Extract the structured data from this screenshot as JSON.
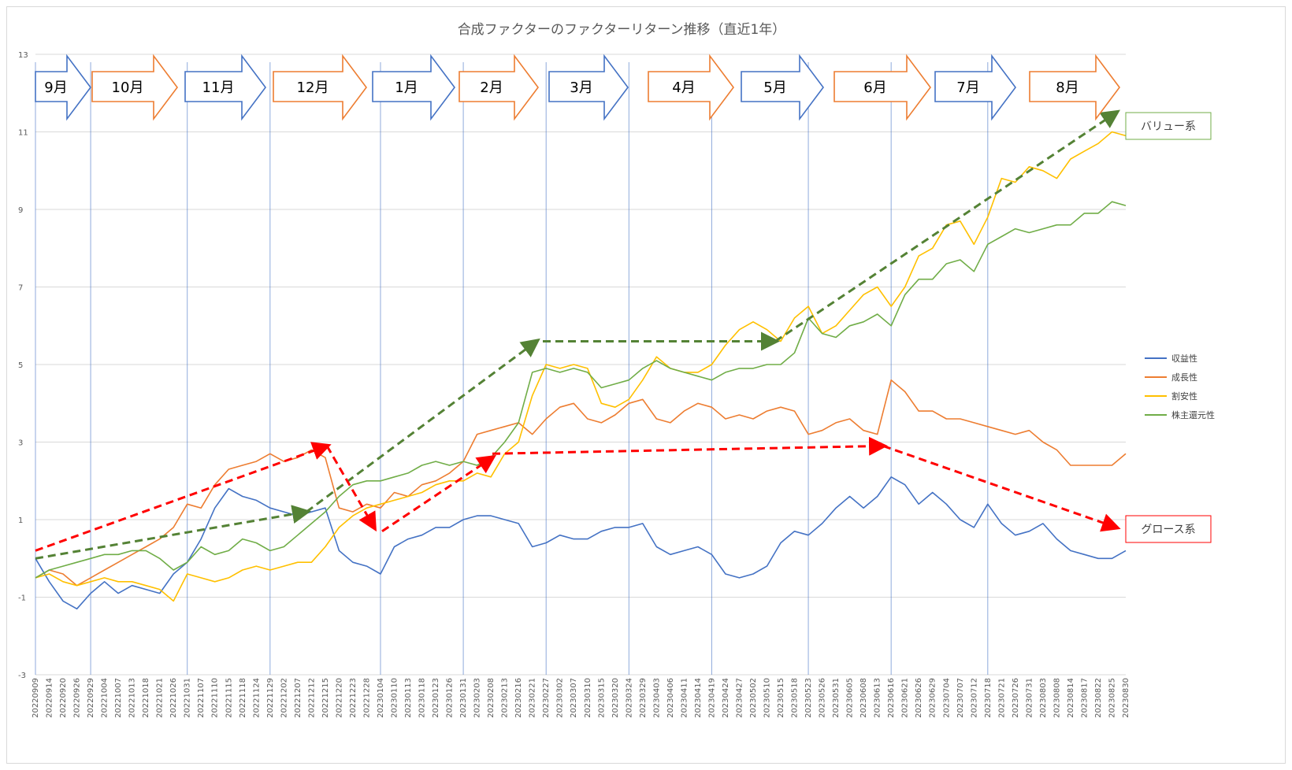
{
  "chart_data": {
    "type": "line",
    "title": "合成ファクターのファクターリターン推移（直近1年）",
    "ylim": [
      -3,
      13
    ],
    "yticks": [
      -3,
      -1,
      1,
      3,
      5,
      7,
      9,
      11,
      13
    ],
    "grid": true,
    "legend_position": "right",
    "x_tick_labels": [
      "20220909",
      "20220914",
      "20220920",
      "20220926",
      "20220929",
      "20221004",
      "20221007",
      "20221013",
      "20221018",
      "20221021",
      "20221026",
      "20221031",
      "20221107",
      "20221110",
      "20221115",
      "20221118",
      "20221124",
      "20221129",
      "20221202",
      "20221207",
      "20221212",
      "20221215",
      "20221220",
      "20221223",
      "20221228",
      "20230104",
      "20230110",
      "20230113",
      "20230118",
      "20230123",
      "20230126",
      "20230131",
      "20230203",
      "20230208",
      "20230213",
      "20230216",
      "20230221",
      "20230227",
      "20230302",
      "20230307",
      "20230310",
      "20230315",
      "20230320",
      "20230324",
      "20230329",
      "20230403",
      "20230406",
      "20230411",
      "20230414",
      "20230419",
      "20230424",
      "20230427",
      "20230502",
      "20230510",
      "20230515",
      "20230518",
      "20230523",
      "20230526",
      "20230531",
      "20230605",
      "20230608",
      "20230613",
      "20230616",
      "20230621",
      "20230626",
      "20230629",
      "20230704",
      "20230707",
      "20230712",
      "20230718",
      "20230721",
      "20230726",
      "20230731",
      "20230803",
      "20230808",
      "20230814",
      "20230817",
      "20230822",
      "20230825",
      "20230830"
    ],
    "series": [
      {
        "name": "収益性",
        "color": "#4472c4",
        "values": [
          0.0,
          -0.6,
          -1.1,
          -1.3,
          -0.9,
          -0.6,
          -0.9,
          -0.7,
          -0.8,
          -0.9,
          -0.4,
          -0.1,
          0.5,
          1.3,
          1.8,
          1.6,
          1.5,
          1.3,
          1.2,
          1.1,
          1.2,
          1.3,
          0.2,
          -0.1,
          -0.2,
          -0.4,
          0.3,
          0.5,
          0.6,
          0.8,
          0.8,
          1.0,
          1.1,
          1.1,
          1.0,
          0.9,
          0.3,
          0.4,
          0.6,
          0.5,
          0.5,
          0.7,
          0.8,
          0.8,
          0.9,
          0.3,
          0.1,
          0.2,
          0.3,
          0.1,
          -0.4,
          -0.5,
          -0.4,
          -0.2,
          0.4,
          0.7,
          0.6,
          0.9,
          1.3,
          1.6,
          1.3,
          1.6,
          2.1,
          1.9,
          1.4,
          1.7,
          1.4,
          1.0,
          0.8,
          1.4,
          0.9,
          0.6,
          0.7,
          0.9,
          0.5,
          0.2,
          0.1,
          0.0,
          0.0,
          0.2
        ]
      },
      {
        "name": "成長性",
        "color": "#ed7d31",
        "values": [
          -0.5,
          -0.3,
          -0.4,
          -0.7,
          -0.5,
          -0.3,
          -0.1,
          0.1,
          0.3,
          0.5,
          0.8,
          1.4,
          1.3,
          1.9,
          2.3,
          2.4,
          2.5,
          2.7,
          2.5,
          2.6,
          2.8,
          2.6,
          1.3,
          1.2,
          1.4,
          1.3,
          1.7,
          1.6,
          1.9,
          2.0,
          2.2,
          2.5,
          3.2,
          3.3,
          3.4,
          3.5,
          3.2,
          3.6,
          3.9,
          4.0,
          3.6,
          3.5,
          3.7,
          4.0,
          4.1,
          3.6,
          3.5,
          3.8,
          4.0,
          3.9,
          3.6,
          3.7,
          3.6,
          3.8,
          3.9,
          3.8,
          3.2,
          3.3,
          3.5,
          3.6,
          3.3,
          3.2,
          4.6,
          4.3,
          3.8,
          3.8,
          3.6,
          3.6,
          3.5,
          3.4,
          3.3,
          3.2,
          3.3,
          3.0,
          2.8,
          2.4,
          2.4,
          2.4,
          2.4,
          2.7
        ]
      },
      {
        "name": "割安性",
        "color": "#ffc000",
        "values": [
          -0.5,
          -0.4,
          -0.6,
          -0.7,
          -0.6,
          -0.5,
          -0.6,
          -0.6,
          -0.7,
          -0.8,
          -1.1,
          -0.4,
          -0.5,
          -0.6,
          -0.5,
          -0.3,
          -0.2,
          -0.3,
          -0.2,
          -0.1,
          -0.1,
          0.3,
          0.8,
          1.1,
          1.3,
          1.4,
          1.5,
          1.6,
          1.7,
          1.9,
          2.0,
          2.0,
          2.2,
          2.1,
          2.7,
          3.0,
          4.2,
          5.0,
          4.9,
          5.0,
          4.9,
          4.0,
          3.9,
          4.1,
          4.6,
          5.2,
          4.9,
          4.8,
          4.8,
          5.0,
          5.5,
          5.9,
          6.1,
          5.9,
          5.6,
          6.2,
          6.5,
          5.8,
          6.0,
          6.4,
          6.8,
          7.0,
          6.5,
          7.0,
          7.8,
          8.0,
          8.6,
          8.7,
          8.1,
          8.8,
          9.8,
          9.7,
          10.1,
          10.0,
          9.8,
          10.3,
          10.5,
          10.7,
          11.0,
          10.9
        ]
      },
      {
        "name": "株主還元性",
        "color": "#70ad47",
        "values": [
          -0.5,
          -0.3,
          -0.2,
          -0.1,
          0.0,
          0.1,
          0.1,
          0.2,
          0.2,
          0.0,
          -0.3,
          -0.1,
          0.3,
          0.1,
          0.2,
          0.5,
          0.4,
          0.2,
          0.3,
          0.6,
          0.9,
          1.2,
          1.6,
          1.9,
          2.0,
          2.0,
          2.1,
          2.2,
          2.4,
          2.5,
          2.4,
          2.5,
          2.4,
          2.6,
          3.0,
          3.5,
          4.8,
          4.9,
          4.8,
          4.9,
          4.8,
          4.4,
          4.5,
          4.6,
          4.9,
          5.1,
          4.9,
          4.8,
          4.7,
          4.6,
          4.8,
          4.9,
          4.9,
          5.0,
          5.0,
          5.3,
          6.2,
          5.8,
          5.7,
          6.0,
          6.1,
          6.3,
          6.0,
          6.8,
          7.2,
          7.2,
          7.6,
          7.7,
          7.4,
          8.1,
          8.3,
          8.5,
          8.4,
          8.5,
          8.6,
          8.6,
          8.9,
          8.9,
          9.2,
          9.1
        ]
      }
    ],
    "months": [
      "9月",
      "10月",
      "11月",
      "12月",
      "1月",
      "2月",
      "3月",
      "4月",
      "5月",
      "6月",
      "7月",
      "8月"
    ],
    "annotations": [
      "バリュー系",
      "グロース系"
    ],
    "colors": {
      "value_arrow": "#548235",
      "growth_arrow": "#ff0000",
      "month_blue": "#4472c4",
      "month_orange": "#ed7d31",
      "grid": "#d9d9d9"
    }
  }
}
